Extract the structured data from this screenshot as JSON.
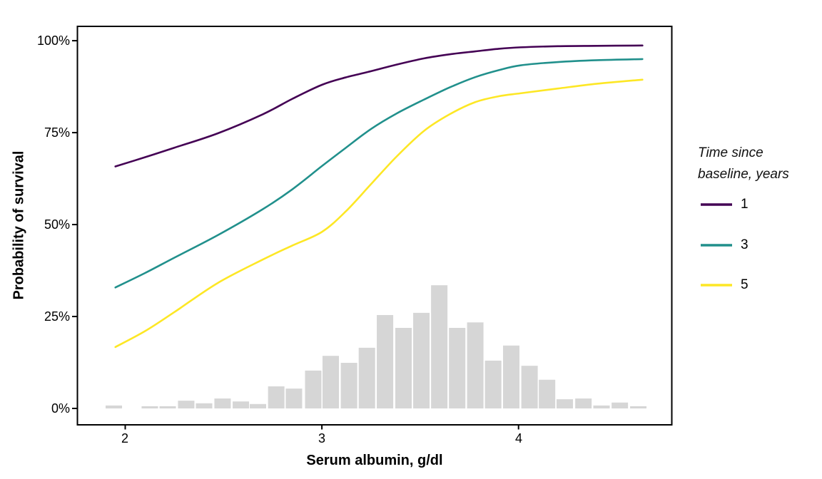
{
  "chart_data": {
    "type": "line",
    "title": "",
    "xlabel": "Serum albumin, g/dl",
    "ylabel": "Probability of survival",
    "x_tick_labels": [
      "2",
      "3",
      "4"
    ],
    "x_tick_values": [
      2,
      3,
      4
    ],
    "y_tick_labels": [
      "0%",
      "25%",
      "50%",
      "75%",
      "100%"
    ],
    "y_tick_values": [
      0,
      25,
      50,
      75,
      100
    ],
    "xlim": [
      1.88,
      4.78
    ],
    "ylim": [
      0,
      104
    ],
    "grid": "off",
    "panel_background": "#FFFFFF",
    "panel_border_color": "#000000",
    "legend": {
      "position": "right",
      "title": "Time since baseline, years",
      "entries": [
        {
          "label": "1",
          "color": "#440154"
        },
        {
          "label": "3",
          "color": "#21908C"
        },
        {
          "label": "5",
          "color": "#FDE725"
        }
      ]
    },
    "series": [
      {
        "name": "1",
        "color": "#440154",
        "x": [
          1.95,
          2.1,
          2.25,
          2.47,
          2.7,
          2.85,
          3.0,
          3.12,
          3.25,
          3.38,
          3.52,
          3.65,
          3.78,
          3.9,
          4.01,
          4.2,
          4.4,
          4.63
        ],
        "y": [
          65.8,
          68.3,
          70.9,
          74.8,
          80.0,
          84.2,
          88.0,
          90.0,
          91.7,
          93.5,
          95.2,
          96.3,
          97.1,
          97.8,
          98.2,
          98.5,
          98.6,
          98.7
        ]
      },
      {
        "name": "3",
        "color": "#21908C",
        "x": [
          1.95,
          2.1,
          2.25,
          2.47,
          2.7,
          2.85,
          3.0,
          3.12,
          3.25,
          3.38,
          3.52,
          3.65,
          3.78,
          3.9,
          4.01,
          4.2,
          4.4,
          4.63
        ],
        "y": [
          32.9,
          36.8,
          41.0,
          47.1,
          54.2,
          59.6,
          65.9,
          70.8,
          76.0,
          80.2,
          84.0,
          87.3,
          90.1,
          92.0,
          93.3,
          94.2,
          94.7,
          95.0
        ]
      },
      {
        "name": "5",
        "color": "#FDE725",
        "x": [
          1.95,
          2.1,
          2.25,
          2.47,
          2.7,
          2.85,
          3.0,
          3.12,
          3.25,
          3.38,
          3.52,
          3.65,
          3.78,
          3.9,
          4.01,
          4.2,
          4.4,
          4.63
        ],
        "y": [
          16.7,
          21.0,
          26.2,
          34.1,
          40.5,
          44.3,
          48.0,
          53.5,
          61.0,
          68.5,
          75.5,
          80.0,
          83.3,
          84.9,
          85.7,
          87.0,
          88.3,
          89.4
        ]
      }
    ],
    "histogram": {
      "description": "distribution of observed serum albumin values",
      "color": "#D6D6D6",
      "bars": [
        {
          "x": 1.942,
          "pct": 0.8
        },
        {
          "x": 2.125,
          "pct": 0.6
        },
        {
          "x": 2.216,
          "pct": 0.6
        },
        {
          "x": 2.31,
          "pct": 2.1
        },
        {
          "x": 2.401,
          "pct": 1.4
        },
        {
          "x": 2.495,
          "pct": 2.7
        },
        {
          "x": 2.588,
          "pct": 1.9
        },
        {
          "x": 2.675,
          "pct": 1.2
        },
        {
          "x": 2.768,
          "pct": 6.0
        },
        {
          "x": 2.858,
          "pct": 5.4
        },
        {
          "x": 2.956,
          "pct": 10.3
        },
        {
          "x": 3.045,
          "pct": 14.3
        },
        {
          "x": 3.138,
          "pct": 12.4
        },
        {
          "x": 3.229,
          "pct": 16.5
        },
        {
          "x": 3.321,
          "pct": 25.4
        },
        {
          "x": 3.415,
          "pct": 21.9
        },
        {
          "x": 3.506,
          "pct": 26.0
        },
        {
          "x": 3.597,
          "pct": 33.5
        },
        {
          "x": 3.688,
          "pct": 21.9
        },
        {
          "x": 3.78,
          "pct": 23.4
        },
        {
          "x": 3.871,
          "pct": 13.0
        },
        {
          "x": 3.963,
          "pct": 17.1
        },
        {
          "x": 4.056,
          "pct": 11.6
        },
        {
          "x": 4.145,
          "pct": 7.8
        },
        {
          "x": 4.235,
          "pct": 2.5
        },
        {
          "x": 4.33,
          "pct": 2.7
        },
        {
          "x": 4.422,
          "pct": 0.8
        },
        {
          "x": 4.515,
          "pct": 1.6
        },
        {
          "x": 4.609,
          "pct": 0.6
        }
      ]
    }
  }
}
